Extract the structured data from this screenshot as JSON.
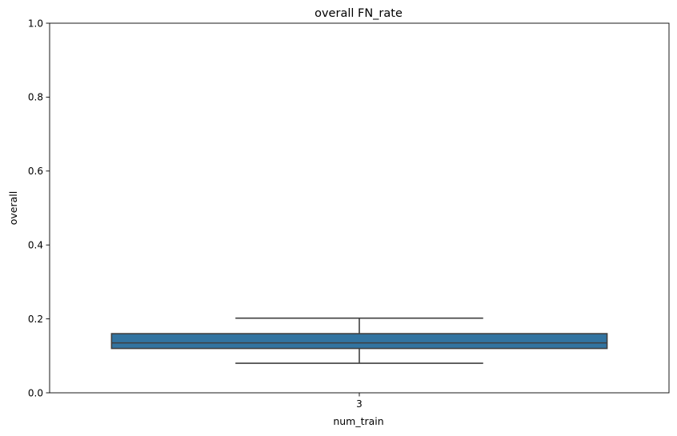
{
  "chart_data": {
    "type": "box",
    "title": "overall FN_rate",
    "xlabel": "num_train",
    "ylabel": "overall",
    "ylim": [
      0,
      1
    ],
    "yticks": [
      0.0,
      0.2,
      0.4,
      0.6,
      0.8,
      1.0
    ],
    "ytick_labels": [
      "0.0",
      "0.2",
      "0.4",
      "0.6",
      "0.8",
      "1.0"
    ],
    "categories": [
      "3"
    ],
    "boxes": [
      {
        "category": "3",
        "whisker_low": 0.08,
        "q1": 0.12,
        "median": 0.135,
        "q3": 0.16,
        "whisker_high": 0.202
      }
    ],
    "grid": false,
    "colors": {
      "box_fill": "#3274a1",
      "line": "#3f3f3f",
      "axes": "#000000"
    }
  }
}
